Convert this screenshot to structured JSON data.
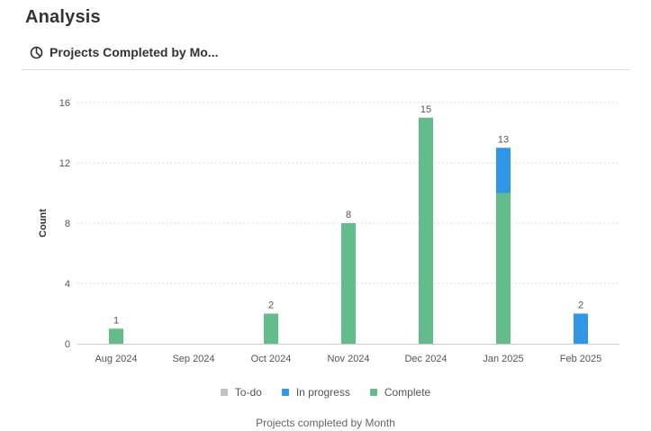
{
  "page": {
    "title": "Analysis"
  },
  "card": {
    "title": "Projects Completed by Mo...",
    "icon": "pie-chart-icon"
  },
  "colors": {
    "todo": "#c2c2c2",
    "in_progress": "#2f96e8",
    "complete": "#63bd8a",
    "grid": "#d0d0d0",
    "axis": "#cccccc"
  },
  "chart_data": {
    "type": "bar",
    "stacked": true,
    "categories": [
      "Aug 2024",
      "Sep 2024",
      "Oct 2024",
      "Nov 2024",
      "Dec 2024",
      "Jan 2025",
      "Feb 2025"
    ],
    "series": [
      {
        "name": "To-do",
        "color": "#c2c2c2",
        "values": [
          0,
          0,
          0,
          0,
          0,
          0,
          0
        ]
      },
      {
        "name": "In progress",
        "color": "#2f96e8",
        "values": [
          0,
          0,
          0,
          0,
          0,
          3,
          2
        ]
      },
      {
        "name": "Complete",
        "color": "#63bd8a",
        "values": [
          1,
          0,
          2,
          8,
          15,
          10,
          0
        ]
      }
    ],
    "totals": [
      "1",
      "",
      "2",
      "8",
      "15",
      "13",
      "2"
    ],
    "ylabel": "Count",
    "xlabel": "Projects completed by Month",
    "ylim": [
      0,
      16
    ],
    "yticks": [
      "0",
      "4",
      "8",
      "12",
      "16"
    ],
    "grid": true,
    "legend_position": "bottom"
  }
}
